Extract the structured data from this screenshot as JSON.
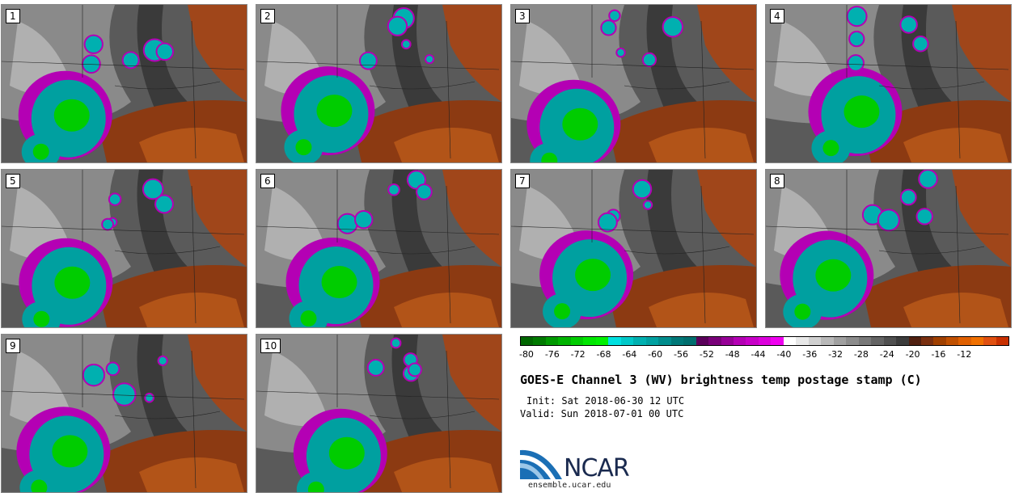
{
  "panels": [
    {
      "label": "1"
    },
    {
      "label": "2"
    },
    {
      "label": "3"
    },
    {
      "label": "4"
    },
    {
      "label": "5"
    },
    {
      "label": "6"
    },
    {
      "label": "7"
    },
    {
      "label": "8"
    },
    {
      "label": "9"
    },
    {
      "label": "10"
    }
  ],
  "colorbar": {
    "colors": [
      "#006600",
      "#007a00",
      "#009900",
      "#00b300",
      "#00cc00",
      "#00e600",
      "#00f000",
      "#00e0e0",
      "#00c8c8",
      "#00b0b0",
      "#00a0a0",
      "#008c8c",
      "#007878",
      "#006e6e",
      "#5a005a",
      "#780078",
      "#960096",
      "#b400b4",
      "#c800c8",
      "#dc00dc",
      "#f000f0",
      "#ffffff",
      "#e8e8e8",
      "#d0d0d0",
      "#b8b8b8",
      "#a0a0a0",
      "#8c8c8c",
      "#787878",
      "#646464",
      "#505050",
      "#3c3c3c",
      "#502010",
      "#7a3010",
      "#a04000",
      "#c05000",
      "#e06000",
      "#f07000",
      "#e05010",
      "#c83000"
    ],
    "ticks": [
      "-80",
      "-76",
      "-72",
      "-68",
      "-64",
      "-60",
      "-56",
      "-52",
      "-48",
      "-44",
      "-40",
      "-36",
      "-32",
      "-28",
      "-24",
      "-20",
      "-16",
      "-12"
    ]
  },
  "title": "GOES-E Channel 3 (WV) brightness temp postage stamp (C)",
  "init": "Init: Sat 2018-06-30 12 UTC",
  "valid": "Valid: Sun 2018-07-01 00 UTC",
  "logo": {
    "text": "NCAR",
    "site": "ensemble.ucar.edu"
  }
}
